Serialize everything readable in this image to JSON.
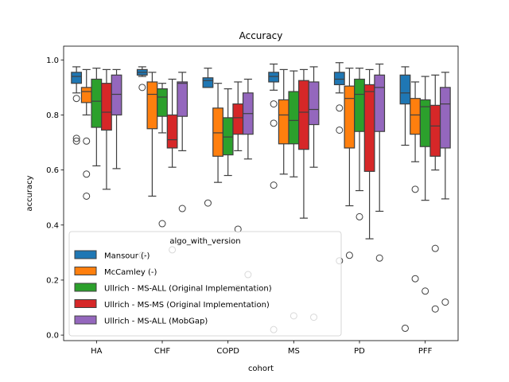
{
  "chart_data": {
    "type": "box",
    "title": "Accuracy",
    "xlabel": "cohort",
    "ylabel": "accuracy",
    "ylim": [
      -0.02,
      1.05
    ],
    "yticks": [
      "0.0",
      "0.2",
      "0.4",
      "0.6",
      "0.8",
      "1.0"
    ],
    "ytick_values": [
      0.0,
      0.2,
      0.4,
      0.6,
      0.8,
      1.0
    ],
    "categories": [
      "HA",
      "CHF",
      "COPD",
      "MS",
      "PD",
      "PFF"
    ],
    "legend": {
      "title": "algo_with_version",
      "placement": "lower-left"
    },
    "series": [
      {
        "name": "Mansour (-)",
        "color": "#1f77b4",
        "boxes": [
          {
            "whislo": 0.88,
            "q1": 0.915,
            "med": 0.94,
            "q3": 0.955,
            "whishi": 0.975,
            "fliers": [
              0.86,
              0.715,
              0.705
            ]
          },
          {
            "whislo": 0.94,
            "q1": 0.945,
            "med": 0.955,
            "q3": 0.965,
            "whishi": 0.975,
            "fliers": [
              0.9,
              0.29
            ]
          },
          {
            "whislo": 0.9,
            "q1": 0.9,
            "med": 0.925,
            "q3": 0.935,
            "whishi": 0.97,
            "fliers": [
              0.48
            ]
          },
          {
            "whislo": 0.89,
            "q1": 0.92,
            "med": 0.94,
            "q3": 0.955,
            "whishi": 0.985,
            "fliers": [
              0.84,
              0.77,
              0.545,
              0.02
            ]
          },
          {
            "whislo": 0.88,
            "q1": 0.91,
            "med": 0.93,
            "q3": 0.955,
            "whishi": 0.99,
            "fliers": [
              0.825,
              0.745,
              0.27
            ]
          },
          {
            "whislo": 0.69,
            "q1": 0.84,
            "med": 0.88,
            "q3": 0.945,
            "whishi": 0.975,
            "fliers": [
              0.025
            ]
          }
        ]
      },
      {
        "name": "McCamley (-)",
        "color": "#ff7f0e",
        "boxes": [
          {
            "whislo": 0.8,
            "q1": 0.845,
            "med": 0.885,
            "q3": 0.9,
            "whishi": 0.965,
            "fliers": [
              0.705,
              0.585,
              0.505
            ]
          },
          {
            "whislo": 0.505,
            "q1": 0.75,
            "med": 0.875,
            "q3": 0.92,
            "whishi": 0.955,
            "fliers": []
          },
          {
            "whislo": 0.555,
            "q1": 0.65,
            "med": 0.735,
            "q3": 0.825,
            "whishi": 0.915,
            "fliers": []
          },
          {
            "whislo": 0.585,
            "q1": 0.695,
            "med": 0.8,
            "q3": 0.855,
            "whishi": 0.965,
            "fliers": []
          },
          {
            "whislo": 0.47,
            "q1": 0.68,
            "med": 0.86,
            "q3": 0.905,
            "whishi": 0.97,
            "fliers": [
              0.29
            ]
          },
          {
            "whislo": 0.63,
            "q1": 0.73,
            "med": 0.8,
            "q3": 0.86,
            "whishi": 0.92,
            "fliers": [
              0.53,
              0.205
            ]
          }
        ]
      },
      {
        "name": "Ullrich - MS-ALL (Original Implementation)",
        "color": "#2ca02c",
        "boxes": [
          {
            "whislo": 0.615,
            "q1": 0.755,
            "med": 0.85,
            "q3": 0.93,
            "whishi": 0.97,
            "fliers": []
          },
          {
            "whislo": 0.735,
            "q1": 0.795,
            "med": 0.865,
            "q3": 0.895,
            "whishi": 0.915,
            "fliers": [
              0.405
            ]
          },
          {
            "whislo": 0.58,
            "q1": 0.655,
            "med": 0.72,
            "q3": 0.79,
            "whishi": 0.895,
            "fliers": []
          },
          {
            "whislo": 0.575,
            "q1": 0.695,
            "med": 0.78,
            "q3": 0.885,
            "whishi": 0.96,
            "fliers": [
              0.07
            ]
          },
          {
            "whislo": 0.525,
            "q1": 0.74,
            "med": 0.875,
            "q3": 0.93,
            "whishi": 0.97,
            "fliers": [
              0.43
            ]
          },
          {
            "whislo": 0.49,
            "q1": 0.685,
            "med": 0.83,
            "q3": 0.855,
            "whishi": 0.94,
            "fliers": [
              0.16
            ]
          }
        ]
      },
      {
        "name": "Ullrich - MS-MS (Original Implementation)",
        "color": "#d62728",
        "boxes": [
          {
            "whislo": 0.53,
            "q1": 0.745,
            "med": 0.81,
            "q3": 0.915,
            "whishi": 0.965,
            "fliers": []
          },
          {
            "whislo": 0.61,
            "q1": 0.68,
            "med": 0.71,
            "q3": 0.8,
            "whishi": 0.93,
            "fliers": [
              0.31
            ]
          },
          {
            "whislo": 0.67,
            "q1": 0.73,
            "med": 0.79,
            "q3": 0.84,
            "whishi": 0.92,
            "fliers": [
              0.385,
              0.17
            ]
          },
          {
            "whislo": 0.425,
            "q1": 0.675,
            "med": 0.81,
            "q3": 0.925,
            "whishi": 0.965,
            "fliers": []
          },
          {
            "whislo": 0.35,
            "q1": 0.595,
            "med": 0.885,
            "q3": 0.91,
            "whishi": 0.965,
            "fliers": []
          },
          {
            "whislo": 0.6,
            "q1": 0.65,
            "med": 0.76,
            "q3": 0.835,
            "whishi": 0.945,
            "fliers": [
              0.315,
              0.095
            ]
          }
        ]
      },
      {
        "name": "Ullrich - MS-ALL (MobGap)",
        "color": "#9467bd",
        "boxes": [
          {
            "whislo": 0.605,
            "q1": 0.8,
            "med": 0.875,
            "q3": 0.945,
            "whishi": 0.965,
            "fliers": []
          },
          {
            "whislo": 0.67,
            "q1": 0.795,
            "med": 0.915,
            "q3": 0.92,
            "whishi": 0.955,
            "fliers": [
              0.46
            ]
          },
          {
            "whislo": 0.64,
            "q1": 0.73,
            "med": 0.805,
            "q3": 0.88,
            "whishi": 0.93,
            "fliers": [
              0.22
            ]
          },
          {
            "whislo": 0.61,
            "q1": 0.765,
            "med": 0.82,
            "q3": 0.92,
            "whishi": 0.975,
            "fliers": [
              0.065
            ]
          },
          {
            "whislo": 0.45,
            "q1": 0.74,
            "med": 0.9,
            "q3": 0.945,
            "whishi": 0.985,
            "fliers": [
              0.28
            ]
          },
          {
            "whislo": 0.495,
            "q1": 0.68,
            "med": 0.84,
            "q3": 0.9,
            "whishi": 0.955,
            "fliers": [
              0.12
            ]
          }
        ]
      }
    ]
  }
}
